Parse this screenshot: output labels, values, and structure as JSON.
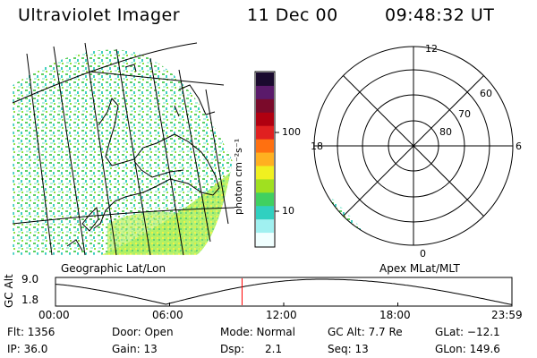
{
  "header": {
    "title": "Ultraviolet Imager",
    "date": "11 Dec 00",
    "time": "09:48:32 UT"
  },
  "colorbar": {
    "unit": "photon cm⁻²s⁻¹",
    "ticks": [
      "100",
      "10"
    ],
    "colors": [
      "#1a0a2e",
      "#5a1a6a",
      "#7a0a2a",
      "#b00010",
      "#e02020",
      "#ff7010",
      "#ffb020",
      "#f0f020",
      "#a0e020",
      "#40d060",
      "#30d0c0",
      "#a0f0f0",
      "#f0ffff"
    ]
  },
  "left_map": {
    "label": "Geographic Lat/Lon"
  },
  "right_map": {
    "label": "Apex MLat/MLT",
    "mlt_labels": {
      "top": "12",
      "left": "18",
      "right": "6",
      "bottom": "0"
    },
    "lat_labels": [
      "60",
      "70",
      "80"
    ]
  },
  "altitude_plot": {
    "axis_label": "GC Alt",
    "y_ticks": [
      "9.0",
      "1.8"
    ],
    "x_ticks": [
      "00:00",
      "06:00",
      "12:00",
      "18:00",
      "23:59"
    ],
    "current_time_marker_hours": 9.81
  },
  "info": {
    "flt": "Flt: 1356",
    "ip": "IP: 36.0",
    "door": "Door: Open",
    "gain": "Gain: 13",
    "mode": "Mode: Normal",
    "dsp": "Dsp:      2.1",
    "gc_alt": "GC Alt: 7.7 Re",
    "seq": "Seq: 13",
    "glat": "GLat: −12.1",
    "glon": "GLon: 149.6"
  },
  "colors": {
    "marker": "#ff0000",
    "ink": "#000000"
  }
}
